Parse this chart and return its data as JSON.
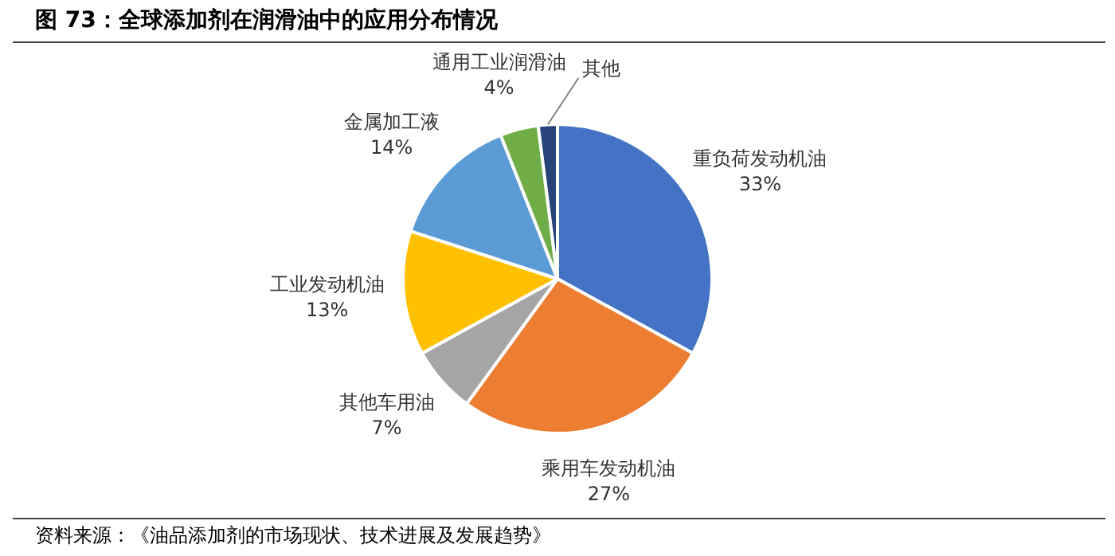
{
  "chart_data": {
    "type": "pie",
    "title": "图 73：全球添加剂在润滑油中的应用分布情况",
    "categories": [
      "重负荷发动机油",
      "乘用车发动机油",
      "其他车用油",
      "工业发动机油",
      "金属加工液",
      "通用工业润滑油",
      "其他"
    ],
    "values": [
      33,
      27,
      7,
      13,
      14,
      4,
      2
    ],
    "value_labels": [
      "33%",
      "27%",
      "7%",
      "13%",
      "14%",
      "4%",
      null
    ],
    "colors": [
      "#4472c4",
      "#ed7d31",
      "#a5a5a5",
      "#ffc000",
      "#5b9bd5",
      "#70ad47",
      "#264478"
    ],
    "legend": false,
    "annotations": [
      "资料来源：《油品添加剂的市场现状、技术进展及发展趋势》"
    ]
  }
}
